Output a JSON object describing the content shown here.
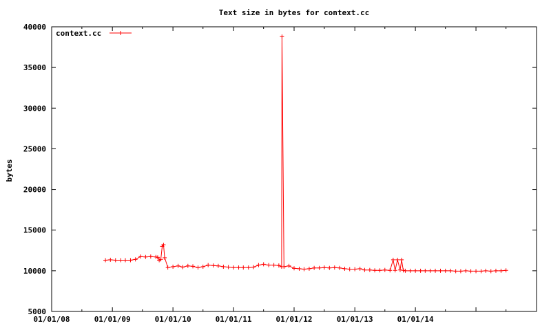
{
  "chart_data": {
    "type": "line",
    "title": "Text size in bytes for context.cc",
    "xlabel": "",
    "ylabel": "bytes",
    "xlim": [
      "2008-01-01",
      "2016-01-01"
    ],
    "ylim": [
      5000,
      40000
    ],
    "grid": false,
    "legend_position": "top-left",
    "x_tick_labels": [
      "01/01/08",
      "01/01/09",
      "01/01/10",
      "01/01/11",
      "01/01/12",
      "01/01/13",
      "01/01/14"
    ],
    "y_tick_labels": [
      "5000",
      "10000",
      "15000",
      "20000",
      "25000",
      "30000",
      "35000",
      "40000"
    ],
    "colors": {
      "series": "#ff0000",
      "axes": "#000000"
    },
    "series": [
      {
        "name": "context.cc",
        "x": [
          "2008-11-20",
          "2008-12-20",
          "2009-01-20",
          "2009-02-20",
          "2009-03-20",
          "2009-04-20",
          "2009-05-20",
          "2009-06-20",
          "2009-07-20",
          "2009-08-20",
          "2009-09-20",
          "2009-10-01",
          "2009-10-10",
          "2009-10-20",
          "2009-10-28",
          "2009-11-05",
          "2009-11-12",
          "2009-12-01",
          "2010-01-01",
          "2010-02-01",
          "2010-03-01",
          "2010-04-01",
          "2010-05-01",
          "2010-06-01",
          "2010-07-01",
          "2010-08-01",
          "2010-09-01",
          "2010-10-01",
          "2010-11-01",
          "2010-12-01",
          "2011-01-01",
          "2011-02-01",
          "2011-03-01",
          "2011-04-01",
          "2011-05-01",
          "2011-06-01",
          "2011-07-01",
          "2011-08-01",
          "2011-09-01",
          "2011-10-01",
          "2011-10-18",
          "2011-10-20",
          "2011-11-01",
          "2011-12-01",
          "2012-01-01",
          "2012-02-01",
          "2012-03-01",
          "2012-04-01",
          "2012-05-01",
          "2012-06-01",
          "2012-07-01",
          "2012-08-01",
          "2012-09-01",
          "2012-10-01",
          "2012-11-01",
          "2012-12-01",
          "2013-01-01",
          "2013-02-01",
          "2013-03-01",
          "2013-04-01",
          "2013-05-01",
          "2013-06-01",
          "2013-07-01",
          "2013-08-01",
          "2013-08-20",
          "2013-09-01",
          "2013-09-15",
          "2013-10-01",
          "2013-10-10",
          "2013-10-20",
          "2013-11-01",
          "2013-12-01",
          "2014-01-01",
          "2014-02-01",
          "2014-03-01",
          "2014-04-01",
          "2014-05-01",
          "2014-06-01",
          "2014-07-01",
          "2014-08-01",
          "2014-09-01",
          "2014-10-01",
          "2014-11-01",
          "2014-12-01",
          "2015-01-01",
          "2015-02-01",
          "2015-03-01",
          "2015-04-01",
          "2015-05-01",
          "2015-06-01",
          "2015-07-01"
        ],
        "values": [
          11300,
          11350,
          11300,
          11300,
          11300,
          11300,
          11400,
          11750,
          11700,
          11750,
          11700,
          11650,
          11300,
          11400,
          13000,
          13200,
          11600,
          10400,
          10500,
          10600,
          10450,
          10600,
          10550,
          10400,
          10500,
          10700,
          10650,
          10600,
          10500,
          10450,
          10400,
          10400,
          10400,
          10400,
          10450,
          10700,
          10800,
          10700,
          10700,
          10650,
          10500,
          38800,
          10500,
          10600,
          10300,
          10250,
          10200,
          10250,
          10350,
          10350,
          10400,
          10350,
          10400,
          10350,
          10250,
          10200,
          10200,
          10250,
          10100,
          10100,
          10050,
          10050,
          10100,
          10050,
          11350,
          10050,
          11350,
          10100,
          11350,
          10050,
          10000,
          10000,
          10000,
          10000,
          10000,
          10000,
          10000,
          10000,
          10000,
          10000,
          9950,
          9950,
          10000,
          9950,
          9950,
          9950,
          10000,
          9950,
          10000,
          10000,
          10050
        ]
      }
    ]
  }
}
